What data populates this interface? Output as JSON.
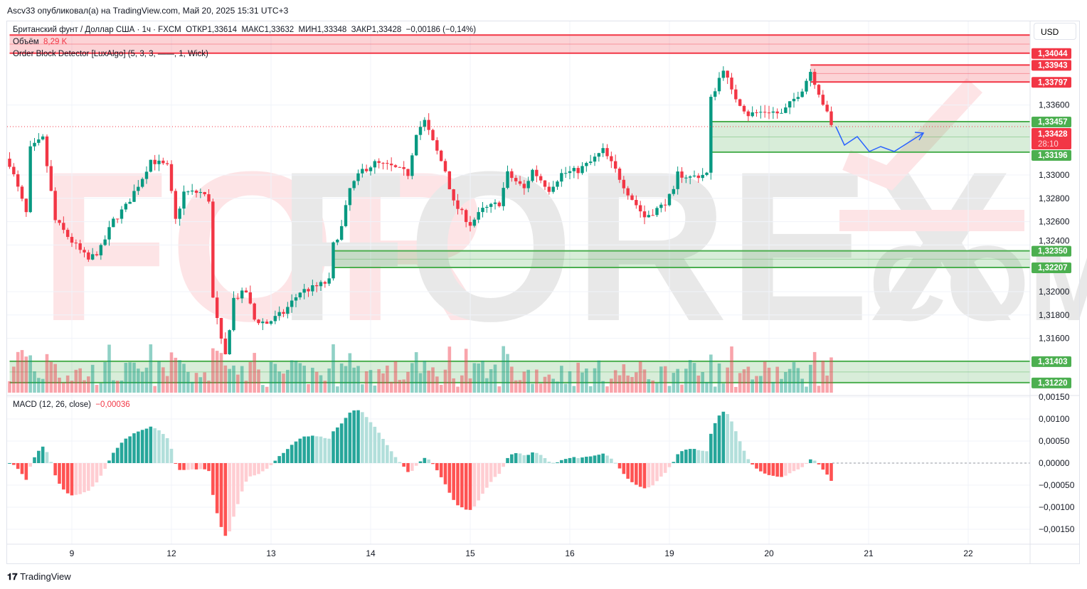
{
  "header": {
    "published": "Ascv33 опубликовал(а) на TradingView.com, Май 20, 2025 15:31 UTC+3"
  },
  "legend": {
    "symbol": "Британский фунт / Доллар США · 1ч · FXCM",
    "open_label": "ОТКР",
    "open": "1,33614",
    "high_label": "МАКС",
    "high": "1,33632",
    "low_label": "МИН",
    "low": "1,33348",
    "close_label": "ЗАКР",
    "close": "1,33428",
    "change": "−0,00186 (−0,14%)",
    "volume_label": "Объём",
    "volume_value": "8,29 K",
    "indicator": "Order Block Detector [LuxAlgo] (5, 3, 3, ——, 1, Wick)",
    "macd_label": "MACD (12, 26, close)",
    "macd_value": "−0,00036"
  },
  "currency": "USD",
  "footer": {
    "brand": "TradingView"
  },
  "watermark": {
    "text": "FORFOREX.COM"
  },
  "colors": {
    "up": "#089981",
    "down": "#f23645",
    "bull_zone": "#4caf50",
    "bear_zone": "#f23645",
    "projection": "#2962ff"
  },
  "price_axis": {
    "ticks": [
      "1,33600",
      "1,33000",
      "1,32800",
      "1,32600",
      "1,32400",
      "1,32000",
      "1,31800",
      "1,31600"
    ],
    "tick_values": [
      1.336,
      1.33,
      1.328,
      1.326,
      1.324,
      1.32,
      1.318,
      1.316
    ]
  },
  "macd_axis": {
    "ticks": [
      "0,00150",
      "0,00100",
      "0,00050",
      "0,00000",
      "−0,00050",
      "−0,00100",
      "−0,00150"
    ],
    "tick_values": [
      0.0015,
      0.001,
      0.0005,
      0,
      -0.0005,
      -0.001,
      -0.0015
    ]
  },
  "time_axis": {
    "labels": [
      "9",
      "12",
      "13",
      "14",
      "15",
      "16",
      "19",
      "20",
      "21",
      "22"
    ]
  },
  "price_labels": [
    {
      "text": "1,34044",
      "value": 1.34044,
      "kind": "bear"
    },
    {
      "text": "1,33943",
      "value": 1.33943,
      "kind": "bear"
    },
    {
      "text": "1,33797",
      "value": 1.33797,
      "kind": "bear"
    },
    {
      "text": "1,33457",
      "value": 1.33457,
      "kind": "bull"
    },
    {
      "text": "1,33196",
      "value": 1.33196,
      "kind": "bull"
    },
    {
      "text": "1,32350",
      "value": 1.3235,
      "kind": "bull"
    },
    {
      "text": "1,32207",
      "value": 1.32207,
      "kind": "bull"
    },
    {
      "text": "1,31403",
      "value": 1.31403,
      "kind": "bull"
    },
    {
      "text": "1,31220",
      "value": 1.3122,
      "kind": "bull"
    }
  ],
  "current_price": {
    "text": "1,33428",
    "value": 1.33428,
    "countdown": "28:10"
  },
  "order_blocks": [
    {
      "kind": "bearish",
      "top": 1.342,
      "bottom": 1.34044,
      "from": "05-08 09:00"
    },
    {
      "kind": "bearish",
      "top": 1.33943,
      "bottom": 1.33797,
      "from": "05-20 10:00"
    },
    {
      "kind": "bullish",
      "top": 1.33457,
      "bottom": 1.33196,
      "from": "05-19 10:00"
    },
    {
      "kind": "bullish",
      "top": 1.3235,
      "bottom": 1.32207,
      "from": "05-13 15:00"
    },
    {
      "kind": "bullish",
      "top": 1.31403,
      "bottom": 1.3122,
      "from": "05-08 09:00"
    }
  ],
  "chart_data": {
    "type": "candlestick",
    "timeframe": "1h",
    "ylim": [
      1.3112,
      1.3422
    ],
    "close_path": [
      [
        "05-08 09:00",
        1.331
      ],
      [
        "05-08 13:00",
        1.3267
      ],
      [
        "05-08 14:00",
        1.3322
      ],
      [
        "05-08 17:00",
        1.3331
      ],
      [
        "05-08 19:00",
        1.3285
      ],
      [
        "05-08 20:00",
        1.3261
      ],
      [
        "05-09 00:00",
        1.3243
      ],
      [
        "05-09 04:00",
        1.3227
      ],
      [
        "05-09 07:00",
        1.3237
      ],
      [
        "05-09 10:00",
        1.3261
      ],
      [
        "05-09 13:00",
        1.3273
      ],
      [
        "05-09 17:00",
        1.3298
      ],
      [
        "05-09 19:00",
        1.3313
      ],
      [
        "05-09 23:00",
        1.3307
      ],
      [
        "05-12 01:00",
        1.3261
      ],
      [
        "05-12 03:00",
        1.3285
      ],
      [
        "05-12 07:00",
        1.3285
      ],
      [
        "05-12 09:00",
        1.3279
      ],
      [
        "05-12 10:00",
        1.3194
      ],
      [
        "05-12 12:00",
        1.3157
      ],
      [
        "05-12 13:00",
        1.3145
      ],
      [
        "05-12 15:00",
        1.3194
      ],
      [
        "05-12 18:00",
        1.32
      ],
      [
        "05-12 20:00",
        1.3176
      ],
      [
        "05-12 23:00",
        1.3173
      ],
      [
        "05-13 03:00",
        1.3182
      ],
      [
        "05-13 07:00",
        1.32
      ],
      [
        "05-13 10:00",
        1.3203
      ],
      [
        "05-13 14:00",
        1.3209
      ],
      [
        "05-13 15:00",
        1.324
      ],
      [
        "05-13 17:00",
        1.3255
      ],
      [
        "05-13 19:00",
        1.3288
      ],
      [
        "05-13 22:00",
        1.3304
      ],
      [
        "05-14 01:00",
        1.331
      ],
      [
        "05-14 05:00",
        1.3307
      ],
      [
        "05-14 09:00",
        1.3301
      ],
      [
        "05-14 11:00",
        1.3337
      ],
      [
        "05-14 13:00",
        1.3346
      ],
      [
        "05-14 15:00",
        1.3328
      ],
      [
        "05-14 18:00",
        1.3304
      ],
      [
        "05-14 20:00",
        1.3276
      ],
      [
        "05-15 00:00",
        1.3258
      ],
      [
        "05-15 03:00",
        1.327
      ],
      [
        "05-15 07:00",
        1.3276
      ],
      [
        "05-15 09:00",
        1.3301
      ],
      [
        "05-15 13:00",
        1.3288
      ],
      [
        "05-15 15:00",
        1.3304
      ],
      [
        "05-15 19:00",
        1.3288
      ],
      [
        "05-15 22:00",
        1.3301
      ],
      [
        "05-16 02:00",
        1.3304
      ],
      [
        "05-16 05:00",
        1.3311
      ],
      [
        "05-16 08:00",
        1.3321
      ],
      [
        "05-16 11:00",
        1.3304
      ],
      [
        "05-16 14:00",
        1.3285
      ],
      [
        "05-16 18:00",
        1.3264
      ],
      [
        "05-16 22:00",
        1.3273
      ],
      [
        "05-19 01:00",
        1.3285
      ],
      [
        "05-19 02:00",
        1.3301
      ],
      [
        "05-19 05:00",
        1.3298
      ],
      [
        "05-19 09:00",
        1.3301
      ],
      [
        "05-19 10:00",
        1.3365
      ],
      [
        "05-19 13:00",
        1.3392
      ],
      [
        "05-19 15:00",
        1.3371
      ],
      [
        "05-19 19:00",
        1.3352
      ],
      [
        "05-20 00:00",
        1.3355
      ],
      [
        "05-20 03:00",
        1.3352
      ],
      [
        "05-20 06:00",
        1.3365
      ],
      [
        "05-20 08:00",
        1.3374
      ],
      [
        "05-20 10:00",
        1.3389
      ],
      [
        "05-20 12:00",
        1.3371
      ],
      [
        "05-20 15:00",
        1.33428
      ]
    ]
  }
}
